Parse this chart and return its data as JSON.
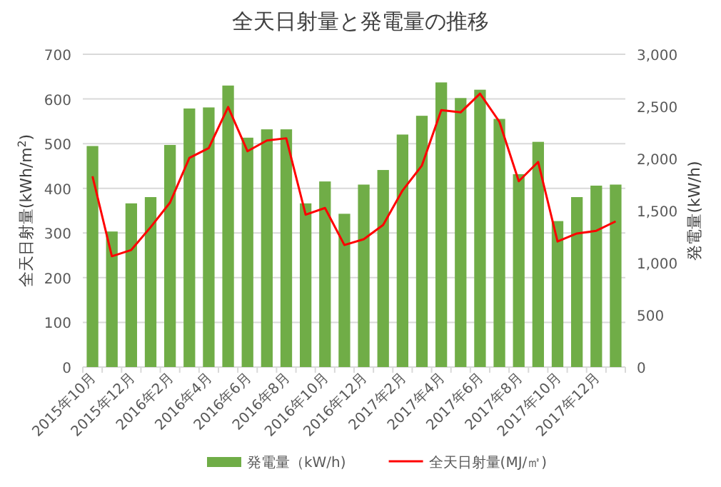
{
  "chart_data": {
    "type": "bar",
    "title": "全天日射量と発電量の推移",
    "ylabel": "全天日射量(kWh/m$^{2}$)",
    "y2label": "発電量(kW/h)",
    "categories": [
      "2015年10月",
      null,
      "2015年12月",
      null,
      "2016年2月",
      null,
      "2016年4月",
      null,
      "2016年6月",
      null,
      "2016年8月",
      null,
      "2016年10月",
      null,
      "2016年12月",
      null,
      "2017年2月",
      null,
      "2017年4月",
      null,
      "2017年6月",
      null,
      "2017年8月",
      null,
      "2017年10月",
      null,
      "2017年12月",
      null
    ],
    "series": [
      {
        "name": "発電量（kW/h)",
        "axis": "y2",
        "color": "#70ad47",
        "values": [
          2120,
          1300,
          1570,
          1630,
          2130,
          2480,
          2490,
          2700,
          2200,
          2280,
          2280,
          1570,
          1780,
          1470,
          1750,
          1890,
          2230,
          2410,
          2730,
          2580,
          2660,
          2380,
          1850,
          2160,
          1400,
          1630,
          1740,
          1750
        ]
      },
      {
        "name": "全天日射量(MJ/㎡)",
        "type": "line",
        "color": "#ff0000",
        "values": [
          427,
          248,
          262,
          313,
          368,
          468,
          490,
          582,
          483,
          507,
          512,
          341,
          356,
          273,
          286,
          318,
          395,
          451,
          575,
          570,
          612,
          549,
          416,
          459,
          281,
          299,
          305,
          326
        ]
      }
    ],
    "ylim": [
      0,
      700
    ],
    "yticks": [
      0,
      100,
      200,
      300,
      400,
      500,
      600,
      700
    ],
    "y2lim": [
      0,
      3000
    ],
    "y2ticks": [
      0,
      {
        "value": 500,
        "label": "500"
      },
      {
        "value": 1000,
        "label": "1,000"
      },
      {
        "value": 1500,
        "label": "1,500"
      },
      {
        "value": 2000,
        "label": "2,000"
      },
      {
        "value": 2500,
        "label": "2,500"
      },
      {
        "value": 3000,
        "label": "3,000"
      }
    ],
    "grid": "y",
    "legend": "bottom",
    "marker": "none",
    "line_style": "solid"
  }
}
